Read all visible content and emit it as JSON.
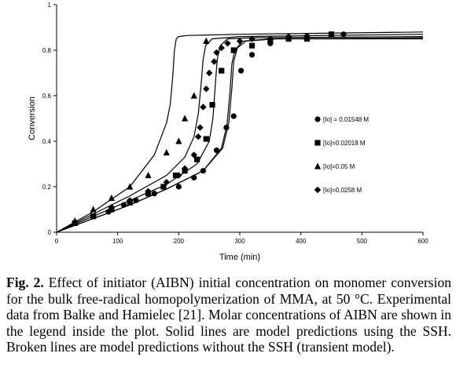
{
  "chart_data": {
    "type": "scatter",
    "xlabel": "Time (min)",
    "ylabel": "Conversion",
    "xlim": [
      0,
      600
    ],
    "ylim": [
      0,
      1
    ],
    "xticks": [
      0,
      100,
      200,
      300,
      400,
      500,
      600
    ],
    "yticks": [
      0,
      0.2,
      0.4,
      0.6,
      0.8,
      1
    ],
    "ytick_labels": [
      "0",
      "0.2",
      "0.4",
      "0.6",
      "0.8",
      "1"
    ],
    "grid": false,
    "legend_position": "right",
    "series": [
      {
        "name": "[Io] = 0.01548 M",
        "marker": "circle",
        "x": [
          30,
          60,
          85,
          110,
          130,
          160,
          200,
          225,
          240,
          262,
          278,
          290,
          302,
          320,
          350,
          380,
          410,
          470
        ],
        "y": [
          0.04,
          0.07,
          0.09,
          0.12,
          0.14,
          0.17,
          0.2,
          0.24,
          0.27,
          0.36,
          0.46,
          0.51,
          0.71,
          0.78,
          0.83,
          0.85,
          0.86,
          0.87
        ]
      },
      {
        "name": "[Io]=0.02018 M",
        "marker": "square",
        "x": [
          30,
          60,
          90,
          120,
          150,
          175,
          195,
          210,
          230,
          245,
          255,
          270,
          290,
          320,
          350,
          380,
          410,
          450
        ],
        "y": [
          0.04,
          0.07,
          0.1,
          0.13,
          0.17,
          0.2,
          0.25,
          0.27,
          0.32,
          0.41,
          0.56,
          0.71,
          0.8,
          0.82,
          0.84,
          0.85,
          0.85,
          0.87
        ]
      },
      {
        "name": "[Io]=0.05 M",
        "marker": "triangle",
        "x": [
          30,
          60,
          90,
          120,
          150,
          180,
          200,
          210,
          225,
          245
        ],
        "y": [
          0.05,
          0.1,
          0.15,
          0.2,
          0.25,
          0.35,
          0.4,
          0.5,
          0.6,
          0.84
        ]
      },
      {
        "name": "[Io]=0.0258 M",
        "marker": "diamond",
        "x": [
          60,
          90,
          120,
          150,
          180,
          200,
          210,
          225,
          232,
          235,
          240,
          245,
          250,
          258,
          262,
          270,
          280,
          300,
          320,
          350,
          380
        ],
        "y": [
          0.07,
          0.11,
          0.14,
          0.18,
          0.22,
          0.25,
          0.28,
          0.34,
          0.42,
          0.46,
          0.55,
          0.63,
          0.7,
          0.75,
          0.79,
          0.81,
          0.83,
          0.84,
          0.85,
          0.85,
          0.86
        ]
      }
    ],
    "model_curves": [
      {
        "x": [
          0,
          60,
          120,
          160,
          180,
          186,
          190,
          193,
          196,
          200,
          215,
          300,
          600
        ],
        "y": [
          0,
          0.09,
          0.2,
          0.34,
          0.48,
          0.56,
          0.68,
          0.8,
          0.85,
          0.86,
          0.865,
          0.87,
          0.88
        ]
      },
      {
        "x": [
          0,
          60,
          120,
          180,
          210,
          225,
          232,
          237,
          240,
          244,
          255,
          300,
          600
        ],
        "y": [
          0,
          0.08,
          0.16,
          0.25,
          0.33,
          0.42,
          0.52,
          0.66,
          0.76,
          0.82,
          0.85,
          0.86,
          0.87
        ]
      },
      {
        "x": [
          0,
          60,
          120,
          180,
          230,
          250,
          256,
          260,
          263,
          268,
          280,
          320,
          600
        ],
        "y": [
          0,
          0.07,
          0.14,
          0.21,
          0.3,
          0.4,
          0.5,
          0.65,
          0.76,
          0.82,
          0.85,
          0.855,
          0.86
        ]
      },
      {
        "x": [
          0,
          60,
          120,
          180,
          240,
          270,
          279,
          284,
          287,
          292,
          305,
          350,
          600
        ],
        "y": [
          0,
          0.06,
          0.12,
          0.19,
          0.27,
          0.37,
          0.47,
          0.62,
          0.74,
          0.8,
          0.84,
          0.85,
          0.855
        ]
      },
      {
        "x": [
          0,
          60,
          120,
          180,
          240,
          272,
          282,
          287,
          290,
          296,
          310,
          360,
          600
        ],
        "y": [
          0,
          0.06,
          0.12,
          0.19,
          0.27,
          0.37,
          0.48,
          0.63,
          0.75,
          0.81,
          0.84,
          0.85,
          0.85
        ]
      }
    ]
  },
  "caption": {
    "label": "Fig. 2.",
    "text": " Effect of initiator (AIBN) initial concentration on monomer conversion for the bulk free-radical homopolymerization of MMA, at 50 °C. Experimental data from Balke and Hamielec [21]. Molar concentrations of AIBN are shown in the legend inside the plot. Solid lines are model predictions using the SSH. Broken lines are model predictions without the SSH (transient model)."
  },
  "colors": {
    "ink": "#000000",
    "background": "#ffffff"
  }
}
